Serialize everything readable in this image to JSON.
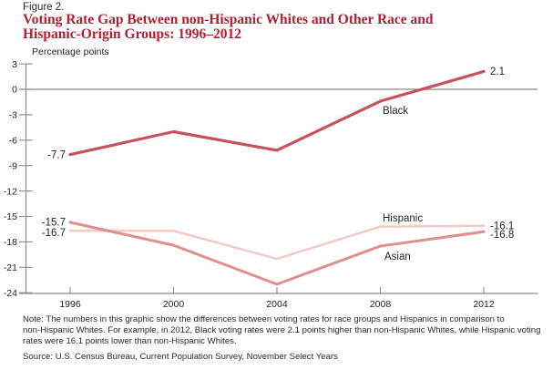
{
  "header": {
    "figure_label": "Figure 2.",
    "title_lines": [
      "Voting Rate Gap Between non-Hispanic Whites and Other Race and",
      "Hispanic-Origin Groups: 1996–2012"
    ]
  },
  "chart_data": {
    "type": "line",
    "title": "Voting Rate Gap Between non-Hispanic Whites and Other Race and Hispanic-Origin Groups: 1996–2012",
    "ylabel": "Percentage points",
    "xlabel": "",
    "categories": [
      "1996",
      "2000",
      "2004",
      "2008",
      "2012"
    ],
    "yticks": [
      3,
      0,
      -3,
      -6,
      -9,
      -12,
      -15,
      -18,
      -21,
      -24
    ],
    "ylim": [
      -24,
      3
    ],
    "grid": false,
    "zero_line": true,
    "legend_position": "inline-labels",
    "series": [
      {
        "name": "Black",
        "color": "#C8515B",
        "values": [
          -7.7,
          -5.0,
          -7.2,
          -1.4,
          2.1
        ],
        "first_label": "-7.7",
        "last_label": "2.1"
      },
      {
        "name": "Hispanic",
        "color": "#F2C8C4",
        "values": [
          -16.7,
          -16.7,
          -20.0,
          -16.2,
          -16.1
        ],
        "first_label": "-16.7",
        "last_label": "-16.1"
      },
      {
        "name": "Asian",
        "color": "#DE908D",
        "values": [
          -15.7,
          -18.4,
          -23.0,
          -18.5,
          -16.8
        ],
        "first_label": "-15.7",
        "last_label": "-16.8"
      }
    ]
  },
  "notes": {
    "note_lines": [
      "Note: The numbers in this graphic show the differences between voting rates for race groups and Hispanics in comparison to",
      "non-Hispanic Whites. For example, in 2012, Black voting rates were 2.1 points higher than non-Hispanic Whites, while Hispanic voting",
      "rates were 16.1 points lower than non-Hispanic Whites."
    ],
    "source": "Source: U.S. Census Bureau, Current Population Survey, November Select Years"
  },
  "colors": {
    "title_red": "#B21E33",
    "axis_gray": "#8C8C8C",
    "label_text": "#262626"
  }
}
